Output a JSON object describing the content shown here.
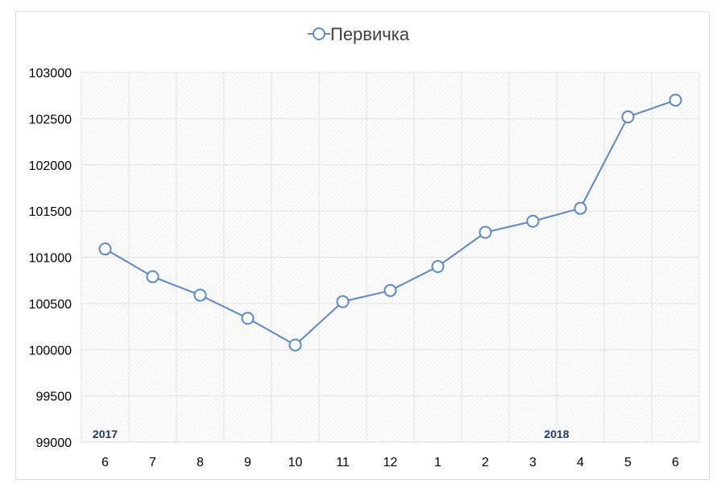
{
  "chart_data": {
    "type": "line",
    "categories": [
      "6",
      "7",
      "8",
      "9",
      "10",
      "11",
      "12",
      "1",
      "2",
      "3",
      "4",
      "5",
      "6"
    ],
    "series": [
      {
        "name": "Первичка",
        "values": [
          101090,
          100790,
          100590,
          100340,
          100050,
          100520,
          100640,
          100900,
          101270,
          101390,
          101530,
          102520,
          102700
        ],
        "color": "#5b87c6"
      }
    ],
    "yticks": [
      "103000",
      "102500",
      "102000",
      "101500",
      "101000",
      "100500",
      "100000",
      "99500",
      "99000"
    ],
    "ylim": [
      99000,
      103000
    ],
    "ystep": 500,
    "year_labels": [
      {
        "text": "2017",
        "category_index": 0
      },
      {
        "text": "2018",
        "category_index": 9.5
      }
    ],
    "year_label_color": "#1f3864",
    "legend_position": "top",
    "grid": true,
    "plot_background": "hatched",
    "gridline_color": "#e0e0e0",
    "hatch_color": "#e7e7e7"
  }
}
